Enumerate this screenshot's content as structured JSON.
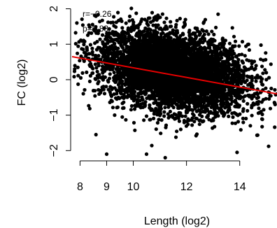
{
  "chart_data": {
    "type": "scatter",
    "xlabel": "Length (log2)",
    "ylabel": "FC (log2)",
    "xlim": [
      7.7,
      15.4
    ],
    "ylim": [
      -2.25,
      2.05
    ],
    "x_ticks": [
      {
        "value": 8,
        "label": "8"
      },
      {
        "value": 9,
        "label": "9"
      },
      {
        "value": 10,
        "label": "10"
      },
      {
        "value": 12,
        "label": "12"
      },
      {
        "value": 14,
        "label": "14"
      }
    ],
    "y_ticks": [
      {
        "value": -2,
        "label": "−2"
      },
      {
        "value": -1,
        "label": "−1"
      },
      {
        "value": 0,
        "label": "0"
      },
      {
        "value": 1,
        "label": "1"
      },
      {
        "value": 2,
        "label": "2"
      }
    ],
    "annotations": [
      "r=−0.26",
      "p=5.83"
    ],
    "point_cloud": {
      "description_count": 5000,
      "center": [
        11.5,
        0.25
      ],
      "x_spread": 1.4,
      "y_spread": 0.55
    },
    "regression_line": {
      "color": "#e60000",
      "start": [
        7.7,
        0.65
      ],
      "end": [
        15.4,
        -0.4
      ]
    },
    "outliers": [
      [
        8.3,
        0.6
      ],
      [
        8.2,
        0.75
      ],
      [
        7.8,
        0.3
      ],
      [
        8.4,
        0.45
      ],
      [
        8.6,
        -1.55
      ],
      [
        9.0,
        -2.1
      ],
      [
        9.0,
        0.8
      ],
      [
        8.8,
        -0.3
      ],
      [
        9.3,
        -1.0
      ],
      [
        14.8,
        -0.9
      ],
      [
        15.0,
        0.0
      ],
      [
        14.5,
        0.5
      ],
      [
        14.7,
        -0.5
      ],
      [
        13.9,
        -2.05
      ],
      [
        14.4,
        -1.3
      ],
      [
        10.5,
        -2.1
      ],
      [
        11.2,
        -2.2
      ],
      [
        9.2,
        1.3
      ]
    ],
    "point_color": "#000000",
    "grid": false
  }
}
